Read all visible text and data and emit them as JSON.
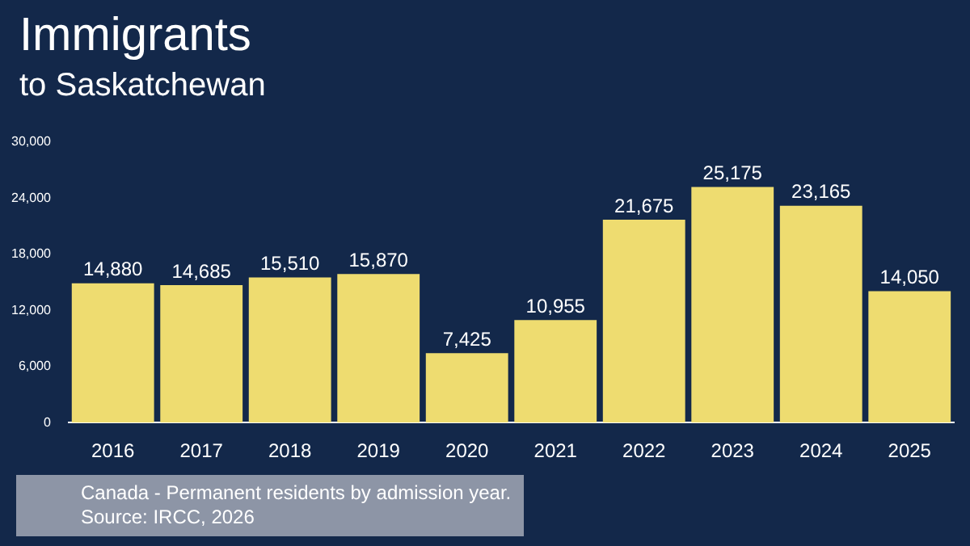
{
  "chart_data": {
    "type": "bar",
    "title": "Immigrants",
    "subtitle": "to Saskatchewan",
    "categories": [
      "2016",
      "2017",
      "2018",
      "2019",
      "2020",
      "2021",
      "2022",
      "2023",
      "2024",
      "2025"
    ],
    "values": [
      14880,
      14685,
      15510,
      15870,
      7425,
      10955,
      21675,
      25175,
      23165,
      14050
    ],
    "color": "#eedc70",
    "ylim": [
      0,
      30000
    ],
    "yticks": [
      {
        "value": 0,
        "label": "0"
      },
      {
        "value": 6000,
        "label": "6,000"
      },
      {
        "value": 12000,
        "label": "12,000"
      },
      {
        "value": 18000,
        "label": "18,000"
      },
      {
        "value": 24000,
        "label": "24,000"
      },
      {
        "value": 30000,
        "label": "30,000"
      }
    ],
    "value_labels": [
      "14,880",
      "14,685",
      "15,510",
      "15,870",
      "7,425",
      "10,955",
      "21,675",
      "25,175",
      "23,165",
      "14,050"
    ],
    "annotations": [
      "Canada - Permanent residents by admission year.",
      "Source: IRCC, 2026"
    ]
  }
}
